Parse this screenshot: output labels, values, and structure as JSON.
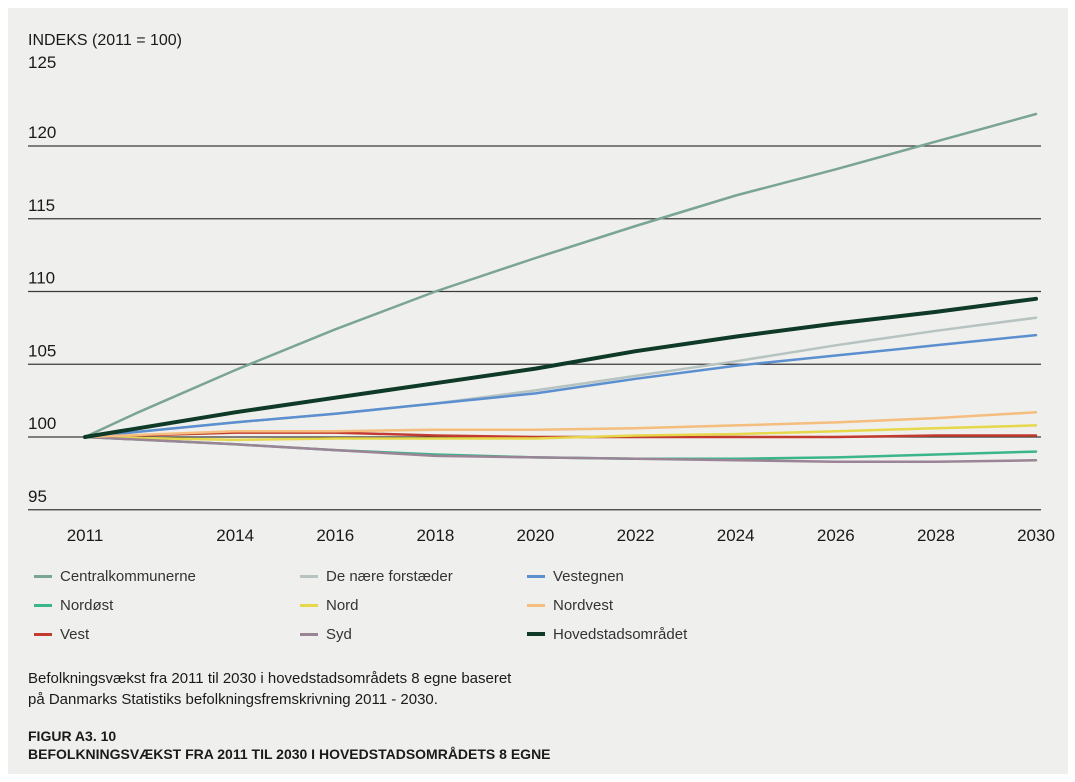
{
  "chart_data": {
    "type": "line",
    "ylabel": "INDEKS (2011 = 100)",
    "ylim": [
      95,
      125
    ],
    "yticks": [
      95,
      100,
      105,
      110,
      115,
      120,
      125
    ],
    "xlim": [
      2011,
      2030
    ],
    "xticks": [
      2011,
      2014,
      2016,
      2018,
      2020,
      2022,
      2024,
      2026,
      2028,
      2030
    ],
    "grid": "horizontal",
    "legend_position": "bottom",
    "series": [
      {
        "name": "Centralkommunerne",
        "color": "#7aa592",
        "width": 2.5,
        "x": [
          2011,
          2012,
          2014,
          2016,
          2018,
          2020,
          2022,
          2024,
          2026,
          2028,
          2030
        ],
        "y": [
          100,
          101.6,
          104.6,
          107.4,
          110.0,
          112.3,
          114.5,
          116.6,
          118.4,
          120.3,
          122.2
        ]
      },
      {
        "name": "Nordøst",
        "color": "#3bb68a",
        "width": 2.5,
        "x": [
          2011,
          2014,
          2016,
          2018,
          2020,
          2022,
          2024,
          2026,
          2028,
          2030
        ],
        "y": [
          100,
          99.5,
          99.1,
          98.8,
          98.6,
          98.5,
          98.5,
          98.6,
          98.8,
          99.0
        ]
      },
      {
        "name": "Vest",
        "color": "#c23b2e",
        "width": 2.5,
        "x": [
          2011,
          2014,
          2016,
          2018,
          2020,
          2022,
          2024,
          2026,
          2028,
          2030
        ],
        "y": [
          100,
          100.3,
          100.3,
          100.1,
          100.0,
          100.0,
          100.0,
          100.0,
          100.1,
          100.1
        ]
      },
      {
        "name": "De nære forstæder",
        "color": "#b6c3c0",
        "width": 2.5,
        "x": [
          2011,
          2014,
          2016,
          2018,
          2020,
          2022,
          2024,
          2026,
          2028,
          2030
        ],
        "y": [
          100,
          101.0,
          101.6,
          102.3,
          103.2,
          104.2,
          105.2,
          106.3,
          107.3,
          108.2
        ]
      },
      {
        "name": "Nord",
        "color": "#e6d84a",
        "width": 2.5,
        "x": [
          2011,
          2014,
          2016,
          2018,
          2020,
          2022,
          2024,
          2026,
          2028,
          2030
        ],
        "y": [
          100,
          99.8,
          99.9,
          99.9,
          99.9,
          100.1,
          100.2,
          100.4,
          100.6,
          100.8
        ]
      },
      {
        "name": "Syd",
        "color": "#9a8495",
        "width": 2.5,
        "x": [
          2011,
          2014,
          2016,
          2018,
          2020,
          2022,
          2024,
          2026,
          2028,
          2030
        ],
        "y": [
          100,
          99.5,
          99.1,
          98.7,
          98.6,
          98.5,
          98.4,
          98.3,
          98.3,
          98.4
        ]
      },
      {
        "name": "Vestegnen",
        "color": "#5b8fcf",
        "width": 2.5,
        "x": [
          2011,
          2014,
          2016,
          2018,
          2020,
          2022,
          2024,
          2026,
          2028,
          2030
        ],
        "y": [
          100,
          101.0,
          101.6,
          102.3,
          103.0,
          104.0,
          104.9,
          105.6,
          106.3,
          107.0
        ]
      },
      {
        "name": "Nordvest",
        "color": "#f5bd7e",
        "width": 2.5,
        "x": [
          2011,
          2014,
          2016,
          2018,
          2020,
          2022,
          2024,
          2026,
          2028,
          2030
        ],
        "y": [
          100,
          100.4,
          100.4,
          100.5,
          100.5,
          100.6,
          100.8,
          101.0,
          101.3,
          101.7
        ]
      },
      {
        "name": "Hovedstadsområdet",
        "color": "#0e3a27",
        "width": 4,
        "x": [
          2011,
          2014,
          2016,
          2018,
          2020,
          2022,
          2024,
          2026,
          2028,
          2030
        ],
        "y": [
          100,
          101.7,
          102.7,
          103.7,
          104.7,
          105.9,
          106.9,
          107.8,
          108.6,
          109.5
        ]
      }
    ]
  },
  "caption": {
    "line1": "Befolkningsvækst fra 2011 til 2030 i hovedstadsområdets 8 egne baseret",
    "line2": "på Danmarks Statistiks befolkningsfremskrivning 2011 - 2030."
  },
  "figure": {
    "number": "FIGUR A3. 10",
    "title": "BEFOLKNINGSVÆKST FRA 2011 TIL 2030 I HOVEDSTADSOMRÅDETS 8 EGNE"
  }
}
